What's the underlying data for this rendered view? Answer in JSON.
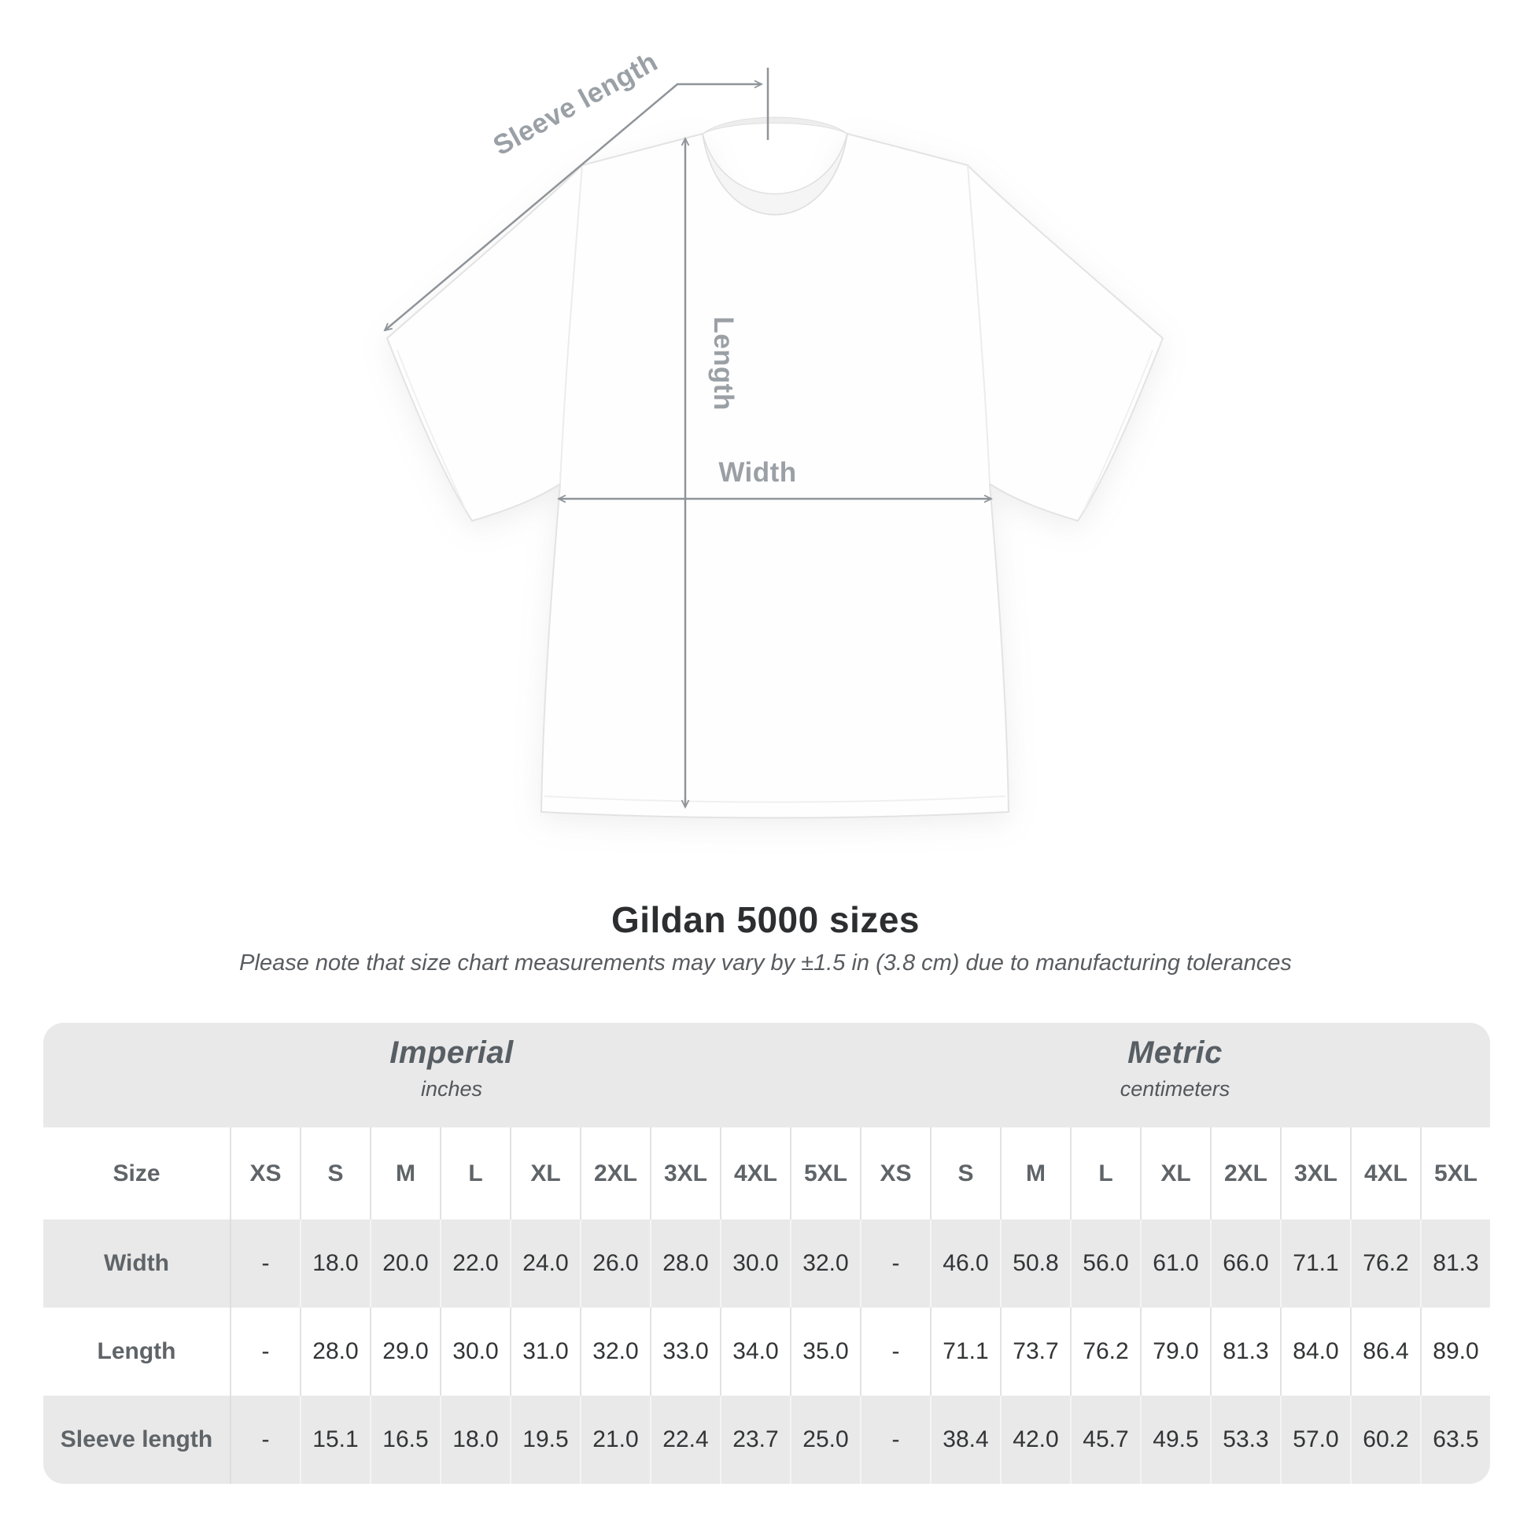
{
  "diagram": {
    "labels": {
      "sleeve_length": "Sleeve length",
      "length": "Length",
      "width": "Width"
    }
  },
  "header": {
    "title": "Gildan 5000 sizes",
    "subtitle": "Please note that size chart measurements may vary by ±1.5 in (3.8 cm) due to manufacturing tolerances"
  },
  "table": {
    "unit_groups": [
      {
        "name": "Imperial",
        "unit": "inches"
      },
      {
        "name": "Metric",
        "unit": "centimeters"
      }
    ],
    "size_header": "Size",
    "size_columns": [
      "XS",
      "S",
      "M",
      "L",
      "XL",
      "2XL",
      "3XL",
      "4XL",
      "5XL",
      "XS",
      "S",
      "M",
      "L",
      "XL",
      "2XL",
      "3XL",
      "4XL",
      "5XL"
    ],
    "rows": [
      {
        "label": "Width",
        "values": [
          "-",
          "18.0",
          "20.0",
          "22.0",
          "24.0",
          "26.0",
          "28.0",
          "30.0",
          "32.0",
          "-",
          "46.0",
          "50.8",
          "56.0",
          "61.0",
          "66.0",
          "71.1",
          "76.2",
          "81.3"
        ]
      },
      {
        "label": "Length",
        "values": [
          "-",
          "28.0",
          "29.0",
          "30.0",
          "31.0",
          "32.0",
          "33.0",
          "34.0",
          "35.0",
          "-",
          "71.1",
          "73.7",
          "76.2",
          "79.0",
          "81.3",
          "84.0",
          "86.4",
          "89.0"
        ]
      },
      {
        "label": "Sleeve length",
        "values": [
          "-",
          "15.1",
          "16.5",
          "18.0",
          "19.5",
          "21.0",
          "22.4",
          "23.7",
          "25.0",
          "-",
          "38.4",
          "42.0",
          "45.7",
          "49.5",
          "53.3",
          "57.0",
          "60.2",
          "63.5"
        ]
      }
    ]
  },
  "colors": {
    "band_bg": "#e9e9e9",
    "row_shade_bg": "#e9e9e9",
    "annotation_label": "#9aa0a5",
    "annotation_arrow": "#8f9499",
    "title_text": "#2c2e30"
  }
}
